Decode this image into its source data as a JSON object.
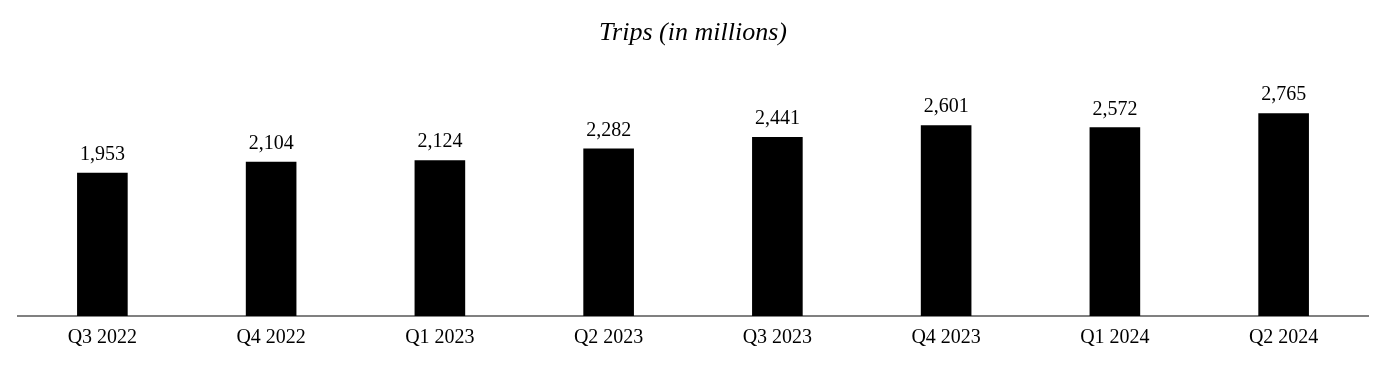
{
  "chart_data": {
    "type": "bar",
    "title": "Trips (in millions)",
    "categories": [
      "Q3 2022",
      "Q4 2022",
      "Q1 2023",
      "Q2 2023",
      "Q3 2023",
      "Q4 2023",
      "Q1 2024",
      "Q2 2024"
    ],
    "values": [
      1953,
      2104,
      2124,
      2282,
      2441,
      2601,
      2572,
      2765
    ],
    "value_labels": [
      "1,953",
      "2,104",
      "2,124",
      "2,282",
      "2,441",
      "2,601",
      "2,572",
      "2,765"
    ],
    "color": "#000000",
    "grid": false,
    "legend": false
  }
}
